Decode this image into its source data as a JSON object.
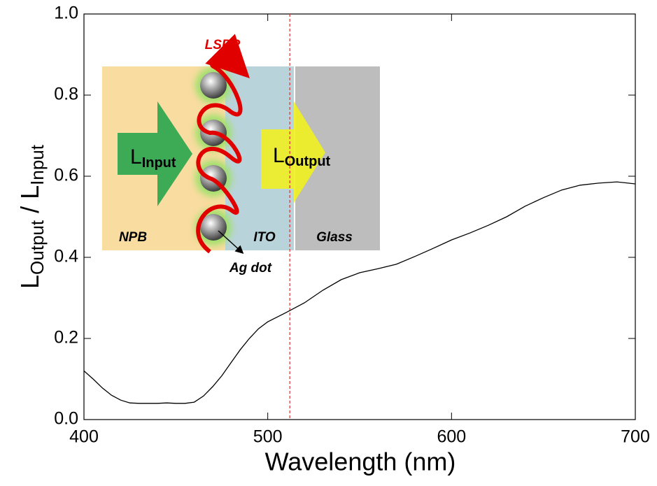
{
  "chart_data": {
    "type": "line",
    "x": [
      400,
      405,
      410,
      415,
      420,
      425,
      430,
      440,
      445,
      450,
      455,
      460,
      465,
      470,
      475,
      480,
      485,
      490,
      495,
      500,
      510,
      520,
      530,
      540,
      550,
      560,
      570,
      580,
      590,
      600,
      610,
      620,
      630,
      640,
      650,
      660,
      670,
      680,
      690,
      700
    ],
    "values": [
      0.12,
      0.1,
      0.078,
      0.06,
      0.048,
      0.041,
      0.04,
      0.04,
      0.041,
      0.04,
      0.04,
      0.043,
      0.058,
      0.081,
      0.108,
      0.14,
      0.172,
      0.2,
      0.224,
      0.241,
      0.264,
      0.288,
      0.319,
      0.345,
      0.362,
      0.372,
      0.383,
      0.402,
      0.422,
      0.443,
      0.46,
      0.479,
      0.5,
      0.526,
      0.547,
      0.566,
      0.578,
      0.583,
      0.586,
      0.581
    ],
    "color": "#000000",
    "xlim": [
      400,
      700
    ],
    "xticks": [
      400,
      500,
      600,
      700
    ],
    "ylim": [
      0,
      1
    ],
    "yticks": [
      {
        "value": 0,
        "label": "0.0"
      },
      0.2,
      0.4,
      0.6,
      0.8,
      {
        "value": 1,
        "label": "1.0"
      }
    ],
    "xlabel": "Wavelength (nm)",
    "ylabel": {
      "l1": "L",
      "sub1": "Output",
      "l2": " / L",
      "sub2": "Input"
    },
    "vline": 512,
    "vline_color": "#e03030",
    "inset": {
      "lspr": "LSPR",
      "in_l": "L",
      "in_sub": "Input",
      "out_l": "L",
      "out_sub": "Output",
      "npb": "NPB",
      "ito": "ITO",
      "glass": "Glass",
      "ag": "Ag dot"
    }
  }
}
